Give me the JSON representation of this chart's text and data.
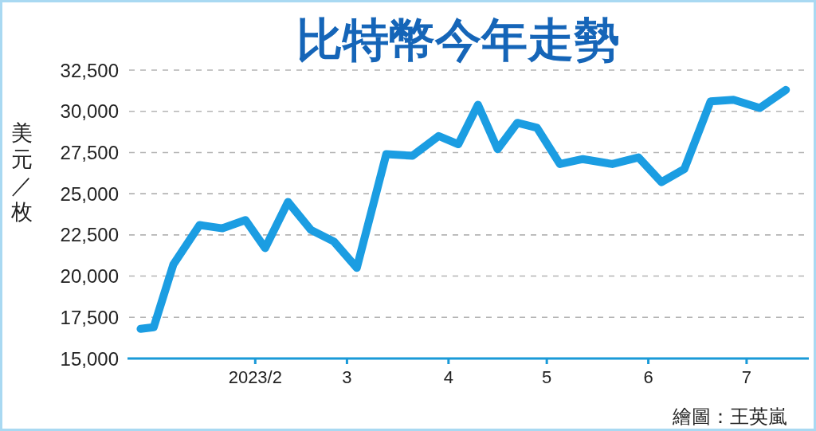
{
  "chart_data": {
    "type": "line",
    "title": "比特幣今年走勢",
    "ylabel": "美元／枚",
    "annotations": [
      "繪圖：王英嵐"
    ],
    "x": [
      "2022-12-28",
      "2023-01-01",
      "2023-01-07",
      "2023-01-15",
      "2023-01-22",
      "2023-01-29",
      "2023-02-04",
      "2023-02-11",
      "2023-02-18",
      "2023-02-25",
      "2023-03-04",
      "2023-03-13",
      "2023-03-21",
      "2023-03-29",
      "2023-04-04",
      "2023-04-10",
      "2023-04-16",
      "2023-04-22",
      "2023-04-28",
      "2023-05-05",
      "2023-05-12",
      "2023-05-21",
      "2023-05-29",
      "2023-06-05",
      "2023-06-12",
      "2023-06-20",
      "2023-06-27",
      "2023-07-05",
      "2023-07-13"
    ],
    "series": [
      {
        "color": "#1b9de2",
        "values": [
          16800,
          16900,
          20700,
          23100,
          22900,
          23400,
          21700,
          24500,
          22800,
          22100,
          20500,
          27400,
          27300,
          28500,
          28000,
          30400,
          27700,
          29300,
          29000,
          26800,
          27100,
          26800,
          27200,
          25700,
          26500,
          30600,
          30700,
          30200,
          31300
        ]
      }
    ],
    "xlim": [
      "2022-12-24",
      "2023-07-20"
    ],
    "ylim": [
      15000,
      32500
    ],
    "xticks": [
      {
        "value": "2023-02-01",
        "label": "2023/2"
      },
      {
        "value": "2023-03-01",
        "label": "3"
      },
      {
        "value": "2023-04-01",
        "label": "4"
      },
      {
        "value": "2023-05-01",
        "label": "5"
      },
      {
        "value": "2023-06-01",
        "label": "6"
      },
      {
        "value": "2023-07-01",
        "label": "7"
      }
    ],
    "yticks": [
      {
        "value": 15000,
        "label": "15,000"
      },
      {
        "value": 17500,
        "label": "17,500"
      },
      {
        "value": 20000,
        "label": "20,000"
      },
      {
        "value": 22500,
        "label": "22,500"
      },
      {
        "value": 25000,
        "label": "25,000"
      },
      {
        "value": 27500,
        "label": "27,500"
      },
      {
        "value": 30000,
        "label": "30,000"
      },
      {
        "value": 32500,
        "label": "32,500"
      }
    ],
    "grid": "y"
  }
}
